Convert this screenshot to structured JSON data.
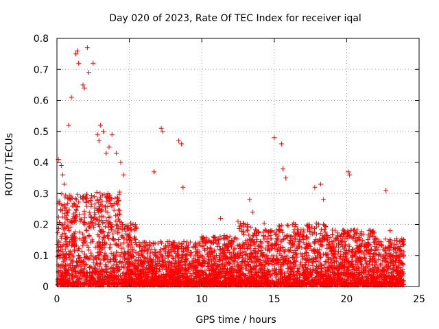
{
  "chart_data": {
    "type": "scatter",
    "title": "Day 020 of 2023, Rate Of TEC Index for receiver iqal",
    "xlabel": "GPS time / hours",
    "ylabel": "ROTI / TECUs",
    "xlim": [
      0,
      25
    ],
    "ylim": [
      0,
      0.8
    ],
    "x_ticks": [
      "0",
      "5",
      "10",
      "15",
      "20",
      "25"
    ],
    "y_ticks": [
      "0",
      "0.1",
      "0.2",
      "0.3",
      "0.4",
      "0.5",
      "0.6",
      "0.7",
      "0.8"
    ],
    "grid": true,
    "marker": "+",
    "color": "#ff0000",
    "series": [
      {
        "x": [
          0.1,
          0.3,
          0.4,
          0.5,
          0.8,
          1.0,
          1.3,
          1.4,
          1.5,
          1.8,
          1.9,
          2.1,
          2.2,
          2.5,
          2.8,
          2.9,
          3.0,
          3.2,
          3.4,
          3.6,
          3.8,
          4.1,
          4.4,
          4.6,
          6.7,
          7.2,
          7.3,
          8.4,
          8.6,
          8.7,
          11.3,
          12.5,
          13.3,
          13.5,
          15.0,
          15.5,
          15.6,
          15.8,
          17.8,
          18.2,
          18.4,
          20.1,
          20.2,
          22.7,
          23.0
        ],
        "y": [
          0.41,
          0.39,
          0.36,
          0.33,
          0.52,
          0.61,
          0.75,
          0.76,
          0.72,
          0.65,
          0.64,
          0.77,
          0.69,
          0.72,
          0.49,
          0.47,
          0.52,
          0.5,
          0.43,
          0.45,
          0.49,
          0.43,
          0.4,
          0.36,
          0.37,
          0.51,
          0.5,
          0.47,
          0.46,
          0.32,
          0.22,
          0.21,
          0.28,
          0.24,
          0.48,
          0.46,
          0.38,
          0.35,
          0.32,
          0.33,
          0.28,
          0.37,
          0.36,
          0.31,
          0.18
        ]
      }
    ]
  }
}
